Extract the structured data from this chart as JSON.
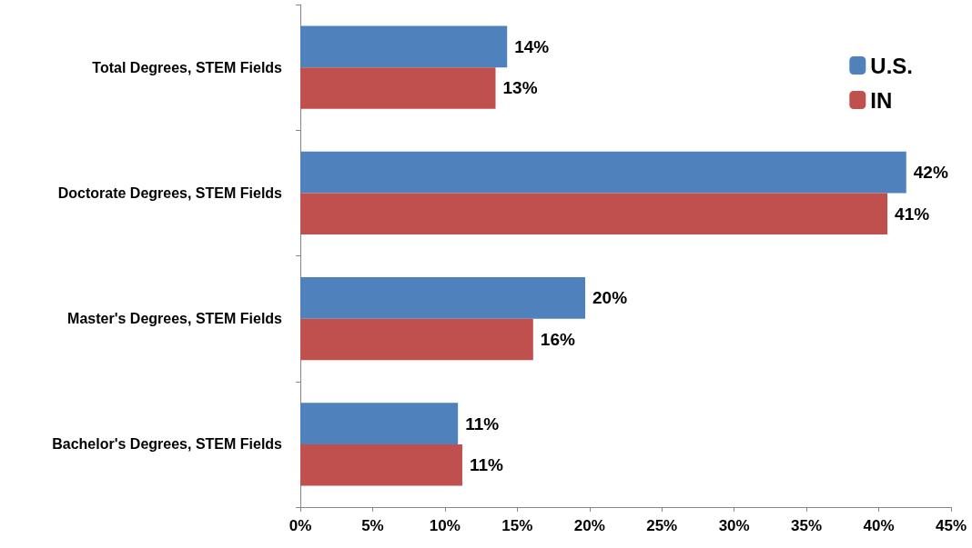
{
  "chart_data": {
    "type": "bar",
    "orientation": "horizontal",
    "categories": [
      "Total Degrees, STEM Fields",
      "Doctorate Degrees, STEM Fields",
      "Master's Degrees, STEM Fields",
      "Bachelor's Degrees, STEM Fields"
    ],
    "series": [
      {
        "name": "U.S.",
        "color": "#4f81bd",
        "values": [
          14.3,
          41.9,
          19.7,
          10.9
        ],
        "value_labels": [
          "14%",
          "42%",
          "20%",
          "11%"
        ]
      },
      {
        "name": "IN",
        "color": "#c0504d",
        "values": [
          13.5,
          40.6,
          16.1,
          11.2
        ],
        "value_labels": [
          "13%",
          "41%",
          "16%",
          "11%"
        ]
      }
    ],
    "xlim": [
      0,
      45
    ],
    "xticks": [
      {
        "value": 0,
        "label": "0%"
      },
      {
        "value": 5,
        "label": "5%"
      },
      {
        "value": 10,
        "label": "10%"
      },
      {
        "value": 15,
        "label": "15%"
      },
      {
        "value": 20,
        "label": "20%"
      },
      {
        "value": 25,
        "label": "25%"
      },
      {
        "value": 30,
        "label": "30%"
      },
      {
        "value": 35,
        "label": "35%"
      },
      {
        "value": 40,
        "label": "40%"
      },
      {
        "value": 45,
        "label": "45%"
      }
    ],
    "grid": false,
    "legend": "top right"
  }
}
